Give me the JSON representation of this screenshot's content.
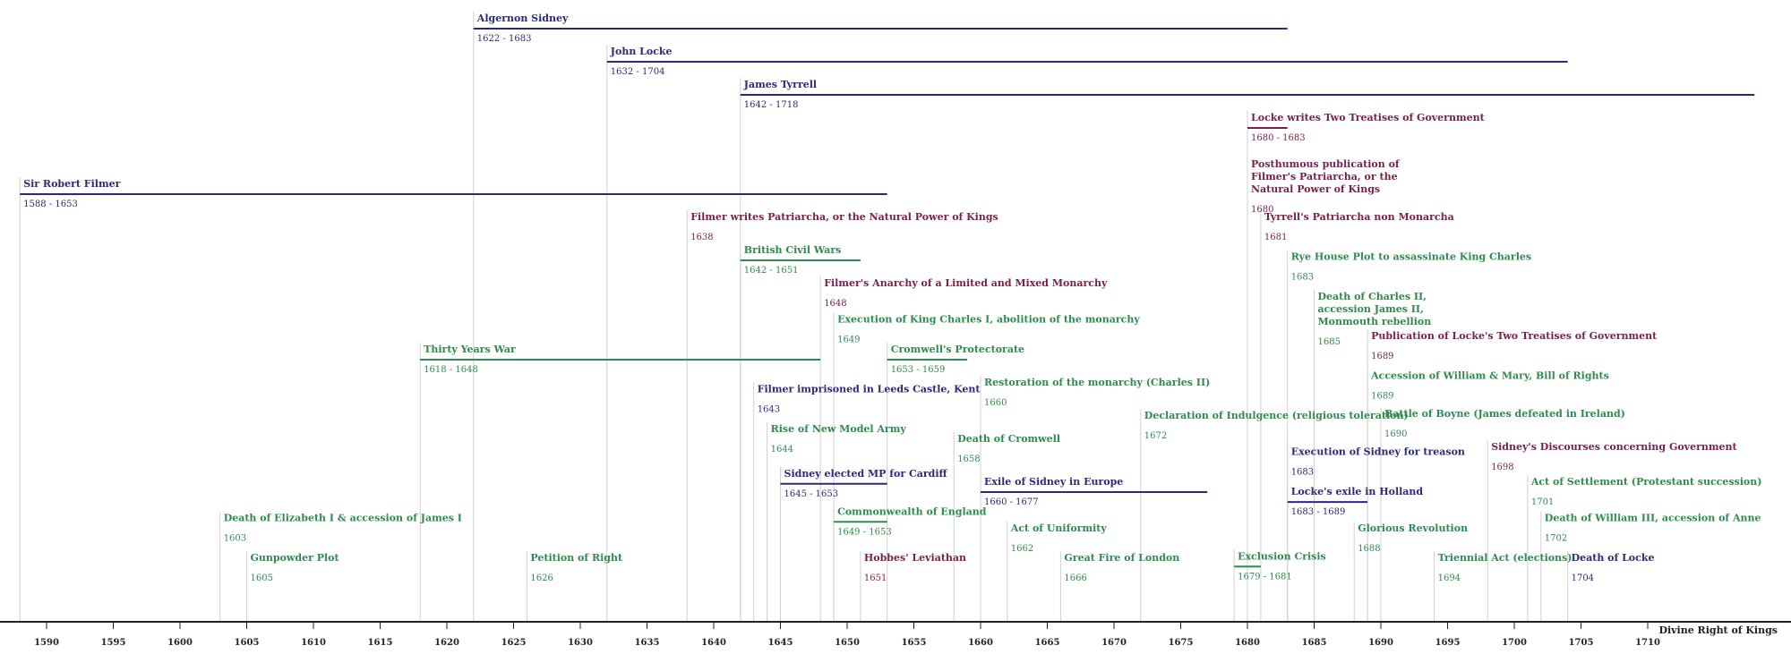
{
  "timeline_title": "Divine Right of Kings",
  "axis": {
    "start_year": 1588,
    "end_year": 1720,
    "tick_step": 5,
    "first_tick": 1590,
    "last_tick": 1710
  },
  "colors": {
    "person": "#2b2a7a",
    "writing": "#7a1f4a",
    "event": "#2e8b4e",
    "guide": "#d0d0d0",
    "axis": "#222222"
  },
  "events": [
    {
      "title": "Algernon Sidney",
      "dates": "1622 - 1683",
      "start": 1622,
      "end": 1683,
      "kind": "person",
      "lane": 0
    },
    {
      "title": "John Locke",
      "dates": "1632 - 1704",
      "start": 1632,
      "end": 1704,
      "kind": "person",
      "lane": 1
    },
    {
      "title": "James Tyrrell",
      "dates": "1642 - 1718",
      "start": 1642,
      "end": 1718,
      "kind": "person",
      "lane": 2
    },
    {
      "title": "Locke writes Two Treatises of Government",
      "dates": "1680 - 1683",
      "start": 1680,
      "end": 1683,
      "kind": "writing",
      "lane": 3
    },
    {
      "title": "Sir Robert Filmer",
      "dates": "1588 - 1653",
      "start": 1588,
      "end": 1653,
      "kind": "person",
      "lane": 5
    },
    {
      "title": "Posthumous publication of Filmer's Patriarcha, or the Natural Power of Kings",
      "dates": "1680",
      "start": 1680,
      "kind": "writing",
      "lane": 4.4,
      "wrap": 27
    },
    {
      "title": "Filmer writes Patriarcha, or the Natural Power of Kings",
      "dates": "1638",
      "start": 1638,
      "kind": "writing",
      "lane": 6
    },
    {
      "title": "Tyrrell's Patriarcha non Monarcha",
      "dates": "1681",
      "start": 1681,
      "kind": "writing",
      "lane": 6
    },
    {
      "title": "British Civil Wars",
      "dates": "1642 - 1651",
      "start": 1642,
      "end": 1651,
      "kind": "event",
      "lane": 7
    },
    {
      "title": "Rye House Plot to assassinate King Charles",
      "dates": "1683",
      "start": 1683,
      "kind": "event",
      "lane": 7.2
    },
    {
      "title": "Filmer's Anarchy of a Limited and Mixed Monarchy",
      "dates": "1648",
      "start": 1648,
      "kind": "writing",
      "lane": 8
    },
    {
      "title": "Death of Charles II, accession James II, Monmouth rebellion",
      "dates": "1685",
      "start": 1685,
      "kind": "event",
      "lane": 8.4,
      "wrap": 26
    },
    {
      "title": "Execution of King Charles I, abolition of the monarchy",
      "dates": "1649",
      "start": 1649,
      "kind": "event",
      "lane": 9.1
    },
    {
      "title": "Publication of Locke's Two Treatises of Government",
      "dates": "1689",
      "start": 1689,
      "kind": "writing",
      "lane": 9.6
    },
    {
      "title": "Thirty Years War",
      "dates": "1618 - 1648",
      "start": 1618,
      "end": 1648,
      "kind": "event",
      "lane": 10
    },
    {
      "title": "Cromwell's Protectorate",
      "dates": "1653 - 1659",
      "start": 1653,
      "end": 1659,
      "kind": "event",
      "lane": 10
    },
    {
      "title": "Restoration of the monarchy (Charles II)",
      "dates": "1660",
      "start": 1660,
      "kind": "event",
      "lane": 11
    },
    {
      "title": "Filmer imprisoned in Leeds Castle, Kent",
      "dates": "1643",
      "start": 1643,
      "kind": "person",
      "lane": 11.2
    },
    {
      "title": "Accession of William & Mary, Bill of Rights",
      "dates": "1689",
      "start": 1689,
      "kind": "event",
      "lane": 10.8
    },
    {
      "title": "Declaration of Indulgence (religious toleration)",
      "dates": "1672",
      "start": 1672,
      "kind": "event",
      "lane": 12
    },
    {
      "title": "Battle of Boyne (James defeated in Ireland)",
      "dates": "1690",
      "start": 1690,
      "kind": "event",
      "lane": 11.95
    },
    {
      "title": "Rise of New Model Army",
      "dates": "1644",
      "start": 1644,
      "kind": "event",
      "lane": 12.4
    },
    {
      "title": "Death of Cromwell",
      "dates": "1658",
      "start": 1658,
      "kind": "event",
      "lane": 12.7
    },
    {
      "title": "Sidney's Discourses concerning Government",
      "dates": "1698",
      "start": 1698,
      "kind": "writing",
      "lane": 12.95
    },
    {
      "title": "Execution of Sidney for treason",
      "dates": "1683",
      "start": 1683,
      "kind": "person",
      "lane": 13.1
    },
    {
      "title": "Sidney elected MP for Cardiff",
      "dates": "1645 - 1653",
      "start": 1645,
      "end": 1653,
      "kind": "person",
      "lane": 13.75
    },
    {
      "title": "Exile of Sidney in Europe",
      "dates": "1660 - 1677",
      "start": 1660,
      "end": 1677,
      "kind": "person",
      "lane": 14
    },
    {
      "title": "Act of Settlement (Protestant succession)",
      "dates": "1701",
      "start": 1701,
      "kind": "event",
      "lane": 14
    },
    {
      "title": "Locke's exile in Holland",
      "dates": "1683 - 1689",
      "start": 1683,
      "end": 1689,
      "kind": "person",
      "lane": 14.3
    },
    {
      "title": "Death of Elizabeth I & accession of James I",
      "dates": "1603",
      "start": 1603,
      "kind": "event",
      "lane": 15.1
    },
    {
      "title": "Commonwealth of England",
      "dates": "1649 - 1653",
      "start": 1649,
      "end": 1653,
      "kind": "event",
      "lane": 14.9
    },
    {
      "title": "Death of William III, accession of Anne",
      "dates": "1702",
      "start": 1702,
      "kind": "event",
      "lane": 15.1
    },
    {
      "title": "Act of Uniformity",
      "dates": "1662",
      "start": 1662,
      "kind": "event",
      "lane": 15.4
    },
    {
      "title": "Glorious Revolution",
      "dates": "1688",
      "start": 1688,
      "kind": "event",
      "lane": 15.4
    },
    {
      "title": "Gunpowder Plot",
      "dates": "1605",
      "start": 1605,
      "kind": "event",
      "lane": 16.3
    },
    {
      "title": "Petition of Right",
      "dates": "1626",
      "start": 1626,
      "kind": "event",
      "lane": 16.3
    },
    {
      "title": "Hobbes' Leviathan",
      "dates": "1651",
      "start": 1651,
      "kind": "writing",
      "lane": 16.3
    },
    {
      "title": "Great Fire of London",
      "dates": "1666",
      "start": 1666,
      "kind": "event",
      "lane": 16.3
    },
    {
      "title": "Exclusion Crisis",
      "dates": "1679 - 1681",
      "start": 1679,
      "end": 1681,
      "kind": "event",
      "lane": 16.25
    },
    {
      "title": "Triennial Act (elections)",
      "dates": "1694",
      "start": 1694,
      "kind": "event",
      "lane": 16.3
    },
    {
      "title": "Death of Locke",
      "dates": "1704",
      "start": 1704,
      "kind": "person",
      "lane": 16.3
    }
  ]
}
